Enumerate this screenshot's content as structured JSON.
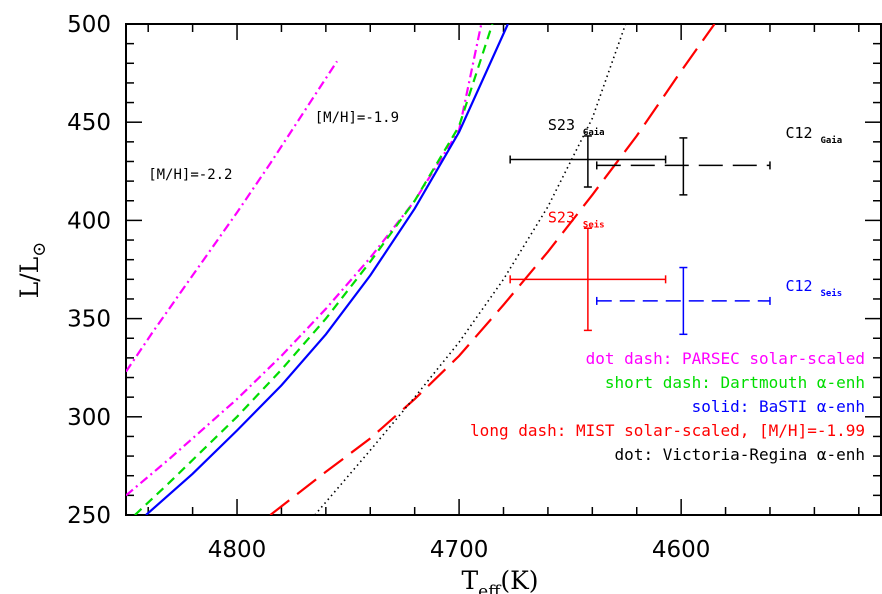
{
  "chart_data": {
    "type": "line",
    "title": "",
    "xlabel_main": "T",
    "xlabel_sub": "eff",
    "xlabel_unit": "(K)",
    "ylabel_main": "L/L",
    "ylabel_sym": "⊙",
    "xlim": [
      4850,
      4510
    ],
    "ylim": [
      250,
      500
    ],
    "x_ticks": [
      4800,
      4700,
      4600
    ],
    "x_tick_labels": [
      "4800",
      "4700",
      "4600"
    ],
    "y_ticks": [
      250,
      300,
      350,
      400,
      450,
      500
    ],
    "y_tick_labels": [
      "250",
      "300",
      "350",
      "400",
      "450",
      "500"
    ],
    "grid": false,
    "colors": {
      "magenta": "#ff00ff",
      "green": "#00dd00",
      "blue": "#0000ff",
      "red": "#ff0000",
      "black": "#000000"
    },
    "series": [
      {
        "key": "parsec_m22",
        "color": "#ff00ff",
        "dash": "dotdash",
        "x": [
          4850,
          4838,
          4820,
          4800,
          4785,
          4770,
          4755
        ],
        "y": [
          323,
          343,
          372,
          404,
          429,
          455,
          481
        ]
      },
      {
        "key": "parsec_m19",
        "color": "#ff00ff",
        "dash": "dotdash",
        "x": [
          4850,
          4830,
          4800,
          4780,
          4760,
          4740,
          4720,
          4700,
          4690
        ],
        "y": [
          260,
          279,
          309,
          331,
          355,
          381,
          410,
          446,
          500
        ]
      },
      {
        "key": "dartmouth",
        "color": "#00dd00",
        "dash": "shortdash",
        "x": [
          4846,
          4830,
          4800,
          4780,
          4760,
          4740,
          4720,
          4700,
          4685
        ],
        "y": [
          250,
          267,
          300,
          324,
          350,
          379,
          410,
          448,
          500
        ]
      },
      {
        "key": "basti",
        "color": "#0000ff",
        "dash": "solid",
        "x": [
          4841,
          4820,
          4800,
          4780,
          4760,
          4740,
          4720,
          4700,
          4678
        ],
        "y": [
          250,
          271,
          293,
          316,
          342,
          372,
          406,
          445,
          500
        ]
      },
      {
        "key": "mist",
        "color": "#ff0000",
        "dash": "longdash",
        "x": [
          4785,
          4760,
          4740,
          4720,
          4700,
          4680,
          4660,
          4640,
          4620,
          4600,
          4585
        ],
        "y": [
          250,
          272,
          289,
          309,
          331,
          357,
          384,
          413,
          443,
          476,
          500
        ]
      },
      {
        "key": "victoria_regina",
        "color": "#000000",
        "dash": "dot",
        "x": [
          4765,
          4740,
          4720,
          4700,
          4680,
          4660,
          4640,
          4625
        ],
        "y": [
          250,
          283,
          310,
          338,
          370,
          407,
          452,
          500
        ]
      }
    ],
    "points": [
      {
        "label_main": "S23",
        "label_sub": "Gaia",
        "color": "#000000",
        "x": 4642,
        "y": 431,
        "xerr": 35,
        "yerr_low": 14,
        "yerr_high": 12,
        "xerr_style": "solid",
        "label_x": 4660,
        "label_y": 446,
        "sub_dx": 35
      },
      {
        "label_main": "C12",
        "label_sub": "Gaia",
        "color": "#000000",
        "x": 4599,
        "y": 428,
        "xerr": 39,
        "yerr_low": 15,
        "yerr_high": 14,
        "xerr_style": "longdash",
        "label_x": 4553,
        "label_y": 442,
        "sub_dx": 35
      },
      {
        "label_main": "S23",
        "label_sub": "Seis",
        "color": "#ff0000",
        "x": 4642,
        "y": 370,
        "xerr": 35,
        "yerr_low": 26,
        "yerr_high": 26,
        "xerr_style": "solid",
        "label_x": 4660,
        "label_y": 399,
        "sub_dx": 35
      },
      {
        "label_main": "C12",
        "label_sub": "Seis",
        "color": "#0000ff",
        "x": 4599,
        "y": 359,
        "xerr": 39,
        "yerr_low": 17,
        "yerr_high": 17,
        "xerr_style": "dashed",
        "label_x": 4553,
        "label_y": 364,
        "sub_dx": 35
      }
    ],
    "annotations": [
      {
        "text": "[M/H]=-2.2",
        "x": 4840,
        "y": 421,
        "anchor": "start"
      },
      {
        "text": "[M/H]=-1.9",
        "x": 4765,
        "y": 450,
        "anchor": "start"
      }
    ],
    "legend": {
      "placement": "bottom-right",
      "entries": [
        {
          "text": "dot dash: PARSEC solar-scaled",
          "color": "#ff00ff"
        },
        {
          "text": "short dash: Dartmouth α-enh",
          "color": "#00dd00"
        },
        {
          "text": "solid: BaSTI α-enh",
          "color": "#0000ff"
        },
        {
          "text": "long dash: MIST solar-scaled, [M/H]=-1.99",
          "color": "#ff0000"
        },
        {
          "text": "dot: Victoria-Regina α-enh",
          "color": "#000000"
        }
      ]
    }
  }
}
